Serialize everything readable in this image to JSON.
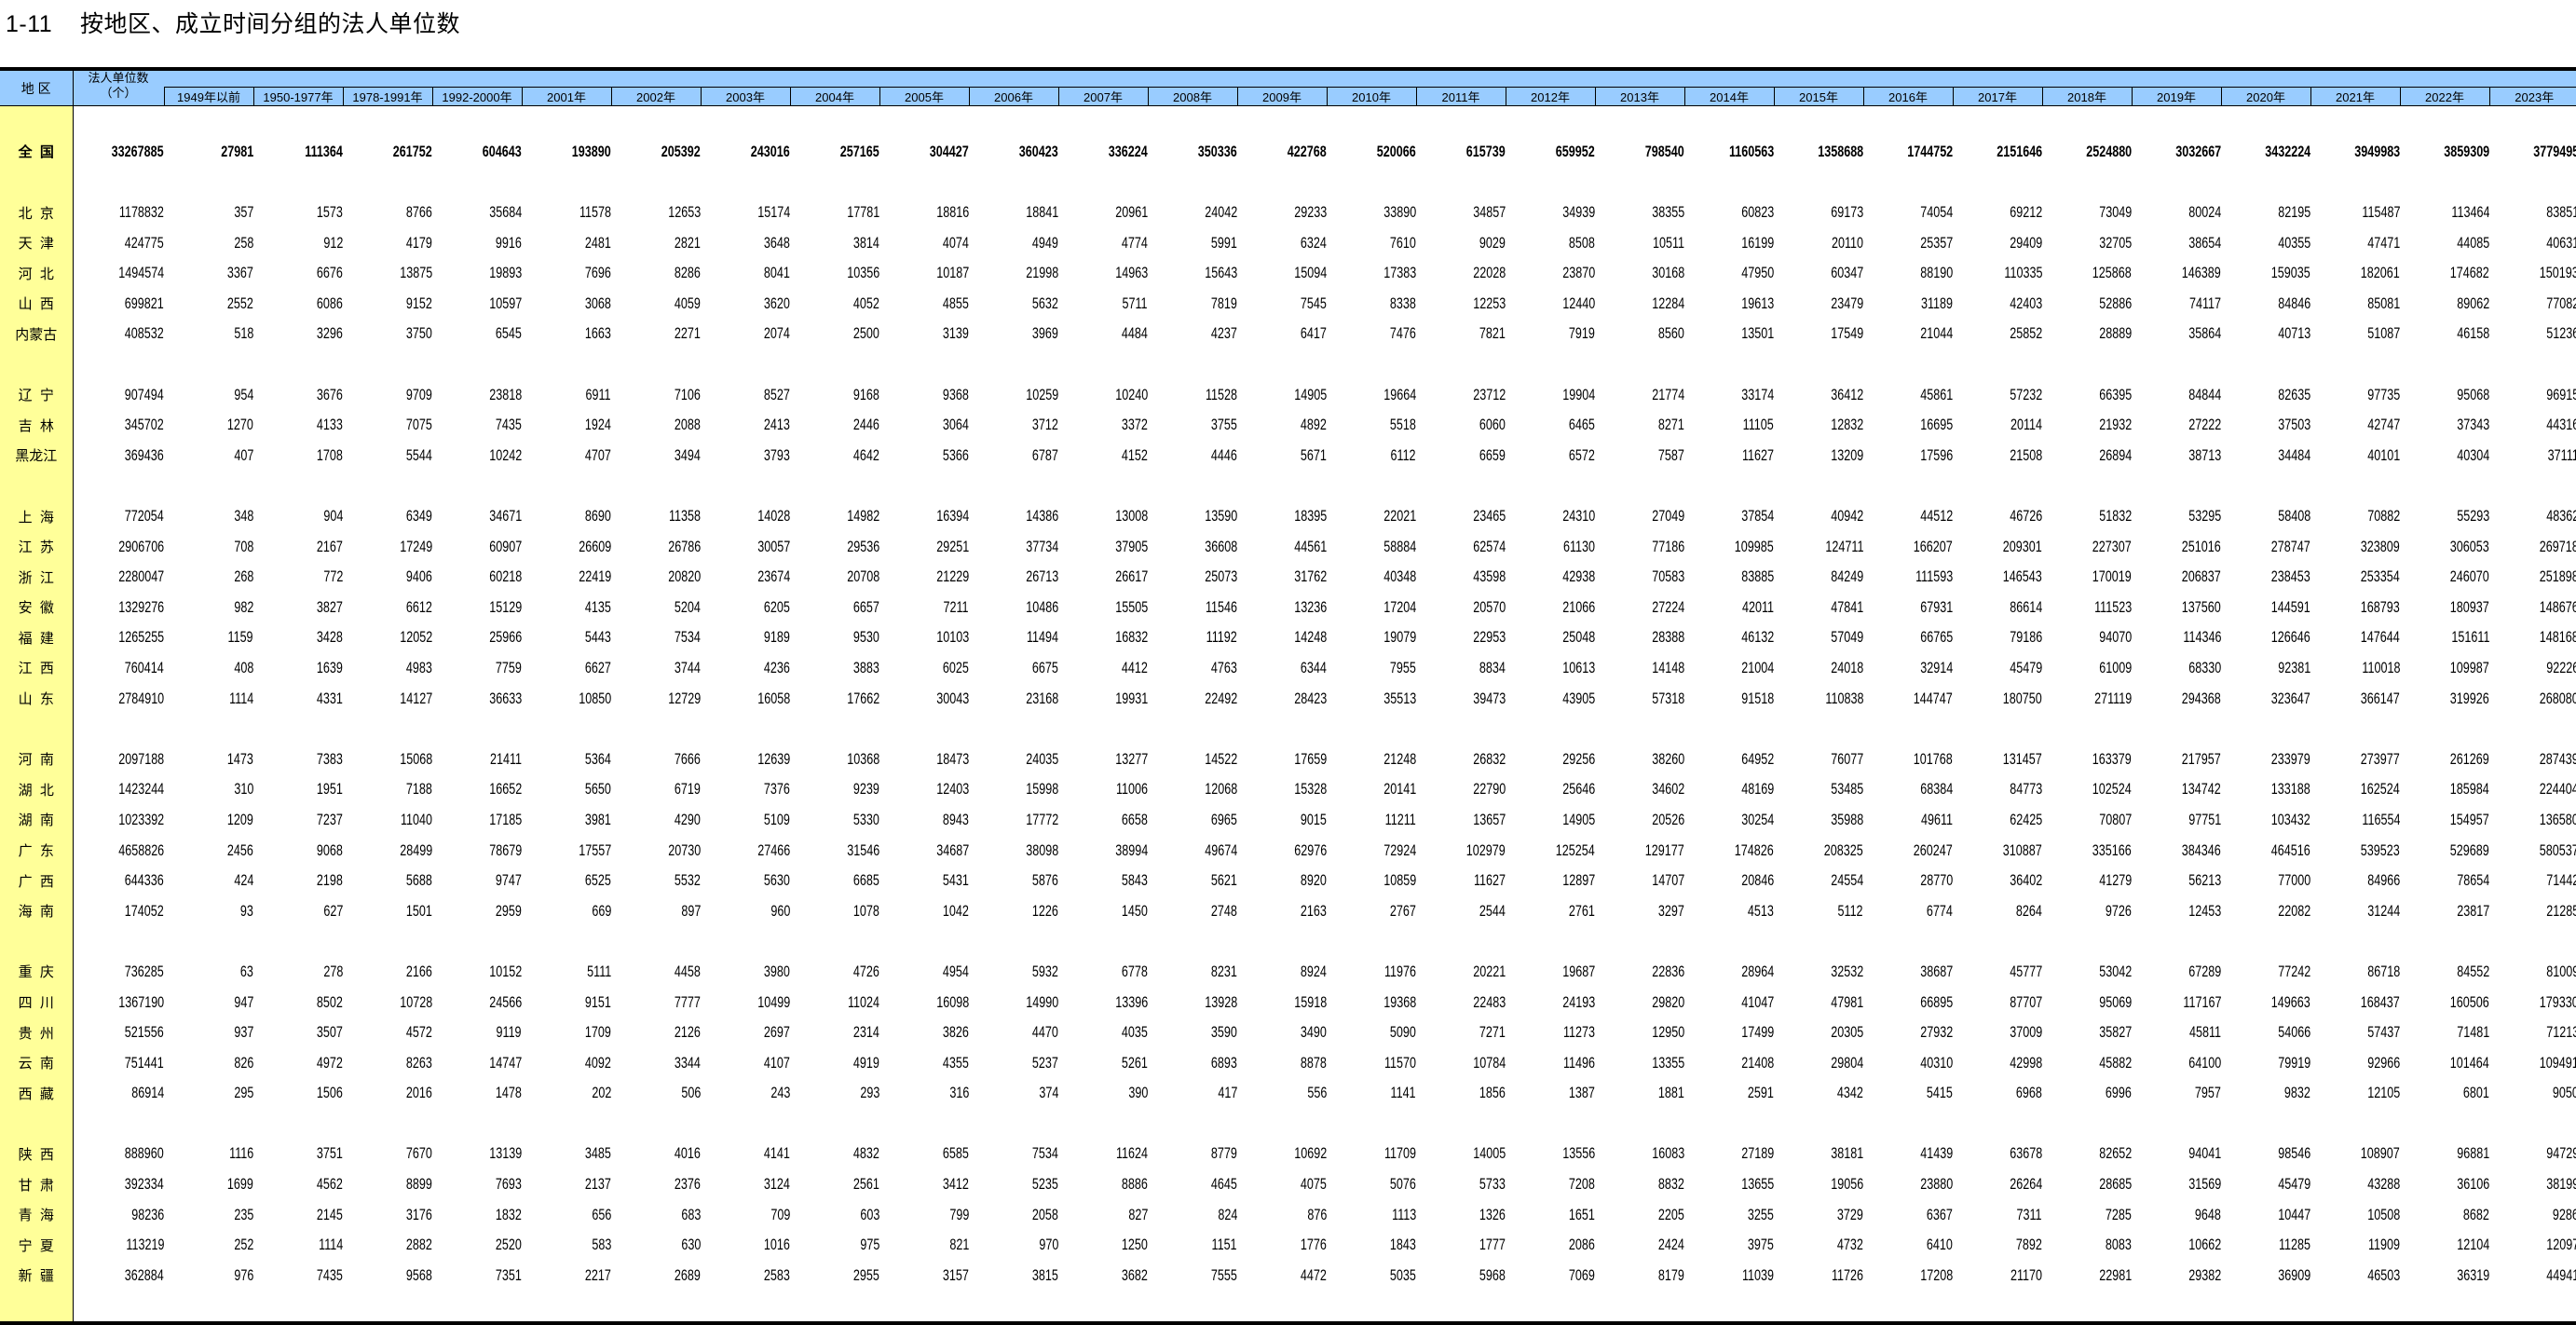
{
  "title": "1-11    按地区、成立时间分组的法人单位数",
  "colors": {
    "header_bg": "#99ccff",
    "region_bg": "#ffff99",
    "border": "#000000"
  },
  "header": {
    "region": "地  区",
    "total_line1": "法人单位数",
    "total_line2": "（个）",
    "columns": [
      "1949年以前",
      "1950-1977年",
      "1978-1991年",
      "1992-2000年",
      "2001年",
      "2002年",
      "2003年",
      "2004年",
      "2005年",
      "2006年",
      "2007年",
      "2008年",
      "2009年",
      "2010年",
      "2011年",
      "2012年",
      "2013年",
      "2014年",
      "2015年",
      "2016年",
      "2017年",
      "2018年",
      "2019年",
      "2020年",
      "2021年",
      "2022年",
      "2023年"
    ]
  },
  "groups": [
    [
      {
        "region": "全  国",
        "values": [
          "33267885",
          "27981",
          "111364",
          "261752",
          "604643",
          "193890",
          "205392",
          "243016",
          "257165",
          "304427",
          "360423",
          "336224",
          "350336",
          "422768",
          "520066",
          "615739",
          "659952",
          "798540",
          "1160563",
          "1358688",
          "1744752",
          "2151646",
          "2524880",
          "3032667",
          "3432224",
          "3949983",
          "3859309",
          "3779495"
        ]
      }
    ],
    [
      {
        "region": "北  京",
        "values": [
          "1178832",
          "357",
          "1573",
          "8766",
          "35684",
          "11578",
          "12653",
          "15174",
          "17781",
          "18816",
          "18841",
          "20961",
          "24042",
          "29233",
          "33890",
          "34857",
          "34939",
          "38355",
          "60823",
          "69173",
          "74054",
          "69212",
          "73049",
          "80024",
          "82195",
          "115487",
          "113464",
          "83851"
        ]
      },
      {
        "region": "天  津",
        "values": [
          "424775",
          "258",
          "912",
          "4179",
          "9916",
          "2481",
          "2821",
          "3648",
          "3814",
          "4074",
          "4949",
          "4774",
          "5991",
          "6324",
          "7610",
          "9029",
          "8508",
          "10511",
          "16199",
          "20110",
          "25357",
          "29409",
          "32705",
          "38654",
          "40355",
          "47471",
          "44085",
          "40631"
        ]
      },
      {
        "region": "河  北",
        "values": [
          "1494574",
          "3367",
          "6676",
          "13875",
          "19893",
          "7696",
          "8286",
          "8041",
          "10356",
          "10187",
          "21998",
          "14963",
          "15643",
          "15094",
          "17383",
          "22028",
          "23870",
          "30168",
          "47950",
          "60347",
          "88190",
          "110335",
          "125868",
          "146389",
          "159035",
          "182061",
          "174682",
          "150193"
        ]
      },
      {
        "region": "山  西",
        "values": [
          "699821",
          "2552",
          "6086",
          "9152",
          "10597",
          "3068",
          "4059",
          "3620",
          "4052",
          "4855",
          "5632",
          "5711",
          "7819",
          "7545",
          "8338",
          "12253",
          "12440",
          "12284",
          "19613",
          "23479",
          "31189",
          "42403",
          "52886",
          "74117",
          "84846",
          "85081",
          "89062",
          "77082"
        ]
      },
      {
        "region": "内蒙古",
        "values": [
          "408532",
          "518",
          "3296",
          "3750",
          "6545",
          "1663",
          "2271",
          "2074",
          "2500",
          "3139",
          "3969",
          "4484",
          "4237",
          "6417",
          "7476",
          "7821",
          "7919",
          "8560",
          "13501",
          "17549",
          "21044",
          "25852",
          "28889",
          "35864",
          "40713",
          "51087",
          "46158",
          "51236"
        ]
      }
    ],
    [
      {
        "region": "辽  宁",
        "values": [
          "907494",
          "954",
          "3676",
          "9709",
          "23818",
          "6911",
          "7106",
          "8527",
          "9168",
          "9368",
          "10259",
          "10240",
          "11528",
          "14905",
          "19664",
          "23712",
          "19904",
          "21774",
          "33174",
          "36412",
          "45861",
          "57232",
          "66395",
          "84844",
          "82635",
          "97735",
          "95068",
          "96915"
        ]
      },
      {
        "region": "吉  林",
        "values": [
          "345702",
          "1270",
          "4133",
          "7075",
          "7435",
          "1924",
          "2088",
          "2413",
          "2446",
          "3064",
          "3712",
          "3372",
          "3755",
          "4892",
          "5518",
          "6060",
          "6465",
          "8271",
          "11105",
          "12832",
          "16695",
          "20114",
          "21932",
          "27222",
          "37503",
          "42747",
          "37343",
          "44316"
        ]
      },
      {
        "region": "黑龙江",
        "values": [
          "369436",
          "407",
          "1708",
          "5544",
          "10242",
          "4707",
          "3494",
          "3793",
          "4642",
          "5366",
          "6787",
          "4152",
          "4446",
          "5671",
          "6112",
          "6659",
          "6572",
          "7587",
          "11627",
          "13209",
          "17596",
          "21508",
          "26894",
          "38713",
          "34484",
          "40101",
          "40304",
          "37111"
        ]
      }
    ],
    [
      {
        "region": "上  海",
        "values": [
          "772054",
          "348",
          "904",
          "6349",
          "34671",
          "8690",
          "11358",
          "14028",
          "14982",
          "16394",
          "14386",
          "13008",
          "13590",
          "18395",
          "22021",
          "23465",
          "24310",
          "27049",
          "37854",
          "40942",
          "44512",
          "46726",
          "51832",
          "53295",
          "58408",
          "70882",
          "55293",
          "48362"
        ]
      },
      {
        "region": "江  苏",
        "values": [
          "2906706",
          "708",
          "2167",
          "17249",
          "60907",
          "26609",
          "26786",
          "30057",
          "29536",
          "29251",
          "37734",
          "37905",
          "36608",
          "44561",
          "58884",
          "62574",
          "61130",
          "77186",
          "109985",
          "124711",
          "166207",
          "209301",
          "227307",
          "251016",
          "278747",
          "323809",
          "306053",
          "269718"
        ]
      },
      {
        "region": "浙  江",
        "values": [
          "2280047",
          "268",
          "772",
          "9406",
          "60218",
          "22419",
          "20820",
          "23674",
          "20708",
          "21229",
          "26713",
          "26617",
          "25073",
          "31762",
          "40348",
          "43598",
          "42938",
          "70583",
          "83885",
          "84249",
          "111593",
          "146543",
          "170019",
          "206837",
          "238453",
          "253354",
          "246070",
          "251898"
        ]
      },
      {
        "region": "安  徽",
        "values": [
          "1329276",
          "982",
          "3827",
          "6612",
          "15129",
          "4135",
          "5204",
          "6205",
          "6657",
          "7211",
          "10486",
          "15505",
          "11546",
          "13236",
          "17204",
          "20570",
          "21066",
          "27224",
          "42011",
          "47841",
          "67931",
          "86614",
          "111523",
          "137560",
          "144591",
          "168793",
          "180937",
          "148676"
        ]
      },
      {
        "region": "福  建",
        "values": [
          "1265255",
          "1159",
          "3428",
          "12052",
          "25966",
          "5443",
          "7534",
          "9189",
          "9530",
          "10103",
          "11494",
          "16832",
          "11192",
          "14248",
          "19079",
          "22953",
          "25048",
          "28388",
          "46132",
          "57049",
          "66765",
          "79186",
          "94070",
          "114346",
          "126646",
          "147644",
          "151611",
          "148168"
        ]
      },
      {
        "region": "江  西",
        "values": [
          "760414",
          "408",
          "1639",
          "4983",
          "7759",
          "6627",
          "3744",
          "4236",
          "3883",
          "6025",
          "6675",
          "4412",
          "4763",
          "6344",
          "7955",
          "8834",
          "10613",
          "14148",
          "21004",
          "24018",
          "32914",
          "45479",
          "61009",
          "68330",
          "92381",
          "110018",
          "109987",
          "92226"
        ]
      },
      {
        "region": "山  东",
        "values": [
          "2784910",
          "1114",
          "4331",
          "14127",
          "36633",
          "10850",
          "12729",
          "16058",
          "17662",
          "30043",
          "23168",
          "19931",
          "22492",
          "28423",
          "35513",
          "39473",
          "43905",
          "57318",
          "91518",
          "110838",
          "144747",
          "180750",
          "271119",
          "294368",
          "323647",
          "366147",
          "319926",
          "268080"
        ]
      }
    ],
    [
      {
        "region": "河  南",
        "values": [
          "2097188",
          "1473",
          "7383",
          "15068",
          "21411",
          "5364",
          "7666",
          "12639",
          "10368",
          "18473",
          "24035",
          "13277",
          "14522",
          "17659",
          "21248",
          "26832",
          "29256",
          "38260",
          "64952",
          "76077",
          "101768",
          "131457",
          "163379",
          "217957",
          "233979",
          "273977",
          "261269",
          "287439"
        ]
      },
      {
        "region": "湖  北",
        "values": [
          "1423244",
          "310",
          "1951",
          "7188",
          "16652",
          "5650",
          "6719",
          "7376",
          "9239",
          "12403",
          "15998",
          "11006",
          "12068",
          "15328",
          "20141",
          "22790",
          "25646",
          "34602",
          "48169",
          "53485",
          "68384",
          "84773",
          "102524",
          "134742",
          "133188",
          "162524",
          "185984",
          "224404"
        ]
      },
      {
        "region": "湖  南",
        "values": [
          "1023392",
          "1209",
          "7237",
          "11040",
          "17185",
          "3981",
          "4290",
          "5109",
          "5330",
          "8943",
          "17772",
          "6658",
          "6965",
          "9015",
          "11211",
          "13657",
          "14905",
          "20526",
          "30254",
          "35988",
          "49611",
          "62425",
          "70807",
          "97751",
          "103432",
          "116554",
          "154957",
          "136580"
        ]
      },
      {
        "region": "广  东",
        "values": [
          "4658826",
          "2456",
          "9068",
          "28499",
          "78679",
          "17557",
          "20730",
          "27466",
          "31546",
          "34687",
          "38098",
          "38994",
          "49674",
          "62976",
          "72924",
          "102979",
          "125254",
          "129177",
          "174826",
          "208325",
          "260247",
          "310887",
          "335166",
          "384346",
          "464516",
          "539523",
          "529689",
          "580537"
        ]
      },
      {
        "region": "广  西",
        "values": [
          "644336",
          "424",
          "2198",
          "5688",
          "9747",
          "6525",
          "5532",
          "5630",
          "6685",
          "5431",
          "5876",
          "5843",
          "5621",
          "8920",
          "10859",
          "11627",
          "12897",
          "14707",
          "20846",
          "24554",
          "28770",
          "36402",
          "41279",
          "56213",
          "77000",
          "84966",
          "78654",
          "71442"
        ]
      },
      {
        "region": "海  南",
        "values": [
          "174052",
          "93",
          "627",
          "1501",
          "2959",
          "669",
          "897",
          "960",
          "1078",
          "1042",
          "1226",
          "1450",
          "2748",
          "2163",
          "2767",
          "2544",
          "2761",
          "3297",
          "4513",
          "5112",
          "6774",
          "8264",
          "9726",
          "12453",
          "22082",
          "31244",
          "23817",
          "21285"
        ]
      }
    ],
    [
      {
        "region": "重  庆",
        "values": [
          "736285",
          "63",
          "278",
          "2166",
          "10152",
          "5111",
          "4458",
          "3980",
          "4726",
          "4954",
          "5932",
          "6778",
          "8231",
          "8924",
          "11976",
          "20221",
          "19687",
          "22836",
          "28964",
          "32532",
          "38687",
          "45777",
          "53042",
          "67289",
          "77242",
          "86718",
          "84552",
          "81009"
        ]
      },
      {
        "region": "四  川",
        "values": [
          "1367190",
          "947",
          "8502",
          "10728",
          "24566",
          "9151",
          "7777",
          "10499",
          "11024",
          "16098",
          "14990",
          "13396",
          "13928",
          "15918",
          "19368",
          "22483",
          "24193",
          "29820",
          "41047",
          "47981",
          "66895",
          "87707",
          "95069",
          "117167",
          "149663",
          "168437",
          "160506",
          "179330"
        ]
      },
      {
        "region": "贵  州",
        "values": [
          "521556",
          "937",
          "3507",
          "4572",
          "9119",
          "1709",
          "2126",
          "2697",
          "2314",
          "3826",
          "4470",
          "4035",
          "3590",
          "3490",
          "5090",
          "7271",
          "11273",
          "12950",
          "17499",
          "20305",
          "27932",
          "37009",
          "35827",
          "45811",
          "54066",
          "57437",
          "71481",
          "71213"
        ]
      },
      {
        "region": "云  南",
        "values": [
          "751441",
          "826",
          "4972",
          "8263",
          "14747",
          "4092",
          "3344",
          "4107",
          "4919",
          "4355",
          "5237",
          "5261",
          "6893",
          "8878",
          "11570",
          "10784",
          "11496",
          "13355",
          "21408",
          "29804",
          "40310",
          "42998",
          "45882",
          "64100",
          "79919",
          "92966",
          "101464",
          "109491"
        ]
      },
      {
        "region": "西  藏",
        "values": [
          "86914",
          "295",
          "1506",
          "2016",
          "1478",
          "202",
          "506",
          "243",
          "293",
          "316",
          "374",
          "390",
          "417",
          "556",
          "1141",
          "1856",
          "1387",
          "1881",
          "2591",
          "4342",
          "5415",
          "6968",
          "6996",
          "7957",
          "9832",
          "12105",
          "6801",
          "9050"
        ]
      }
    ],
    [
      {
        "region": "陕  西",
        "values": [
          "888960",
          "1116",
          "3751",
          "7670",
          "13139",
          "3485",
          "4016",
          "4141",
          "4832",
          "6585",
          "7534",
          "11624",
          "8779",
          "10692",
          "11709",
          "14005",
          "13556",
          "16083",
          "27189",
          "38181",
          "41439",
          "63678",
          "82652",
          "94041",
          "98546",
          "108907",
          "96881",
          "94729"
        ]
      },
      {
        "region": "甘  肃",
        "values": [
          "392334",
          "1699",
          "4562",
          "8899",
          "7693",
          "2137",
          "2376",
          "3124",
          "2561",
          "3412",
          "5235",
          "8886",
          "4645",
          "4075",
          "5076",
          "5733",
          "7208",
          "8832",
          "13655",
          "19056",
          "23880",
          "26264",
          "28685",
          "31569",
          "45479",
          "43288",
          "36106",
          "38199"
        ]
      },
      {
        "region": "青  海",
        "values": [
          "98236",
          "235",
          "2145",
          "3176",
          "1832",
          "656",
          "683",
          "709",
          "603",
          "799",
          "2058",
          "827",
          "824",
          "876",
          "1113",
          "1326",
          "1651",
          "2205",
          "3255",
          "3729",
          "6367",
          "7311",
          "7285",
          "9648",
          "10447",
          "10508",
          "8682",
          "9286"
        ]
      },
      {
        "region": "宁  夏",
        "values": [
          "113219",
          "252",
          "1114",
          "2882",
          "2520",
          "583",
          "630",
          "1016",
          "975",
          "821",
          "970",
          "1250",
          "1151",
          "1776",
          "1843",
          "1777",
          "2086",
          "2424",
          "3975",
          "4732",
          "6410",
          "7892",
          "8083",
          "10662",
          "11285",
          "11909",
          "12104",
          "12097"
        ]
      },
      {
        "region": "新  疆",
        "values": [
          "362884",
          "976",
          "7435",
          "9568",
          "7351",
          "2217",
          "2689",
          "2583",
          "2955",
          "3157",
          "3815",
          "3682",
          "7555",
          "4472",
          "5035",
          "5968",
          "7069",
          "8179",
          "11039",
          "11726",
          "17208",
          "21170",
          "22981",
          "29382",
          "36909",
          "46503",
          "36319",
          "44941"
        ]
      }
    ]
  ]
}
